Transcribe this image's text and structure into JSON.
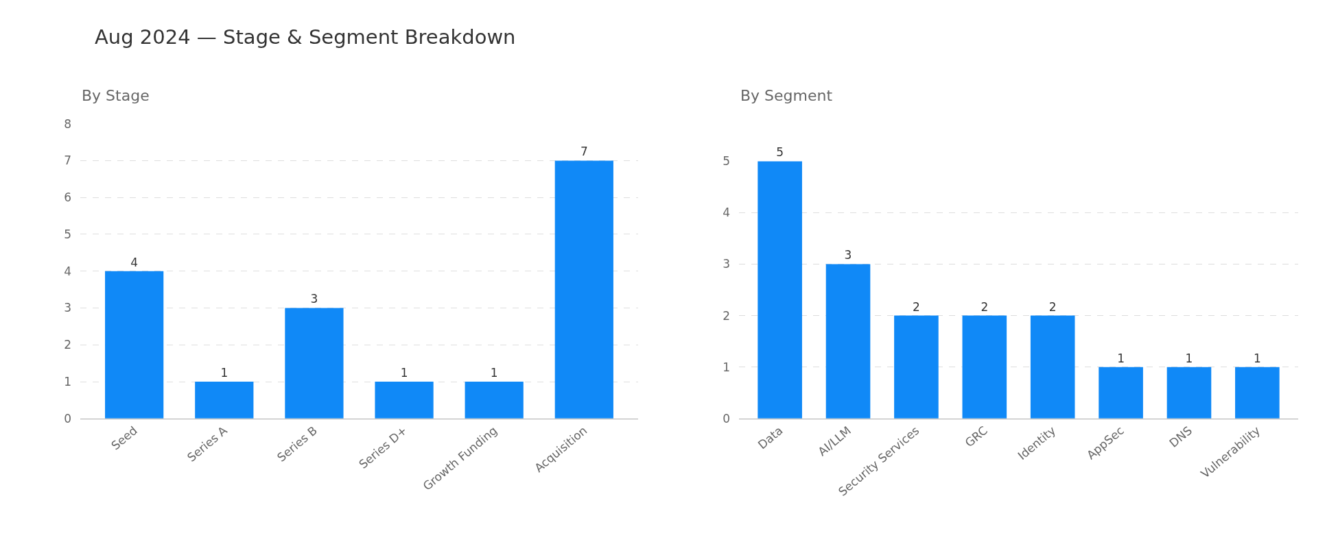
{
  "chart_data": [
    {
      "type": "bar",
      "title": "Aug 2024 — Stage & Segment Breakdown",
      "subtitle": "By Stage",
      "categories": [
        "Seed",
        "Series A",
        "Series B",
        "Series D+",
        "Growth Funding",
        "Acquisition"
      ],
      "values": [
        4,
        1,
        3,
        1,
        1,
        7
      ],
      "color": "#1089f7",
      "ylim": [
        0,
        8
      ],
      "yticks": [
        0,
        1,
        2,
        3,
        4,
        5,
        6,
        7,
        8
      ],
      "grid": "y",
      "data_labels": true
    },
    {
      "type": "bar",
      "subtitle": "By Segment",
      "categories": [
        "Data",
        "AI/LLM",
        "Security Services",
        "GRC",
        "Identity",
        "AppSec",
        "DNS",
        "Vulnerability"
      ],
      "values": [
        5,
        3,
        2,
        2,
        2,
        1,
        1,
        1
      ],
      "color": "#1089f7",
      "ylim": [
        0,
        5
      ],
      "yticks": [
        0,
        1,
        2,
        3,
        4,
        5
      ],
      "grid": "y",
      "data_labels": true
    }
  ]
}
